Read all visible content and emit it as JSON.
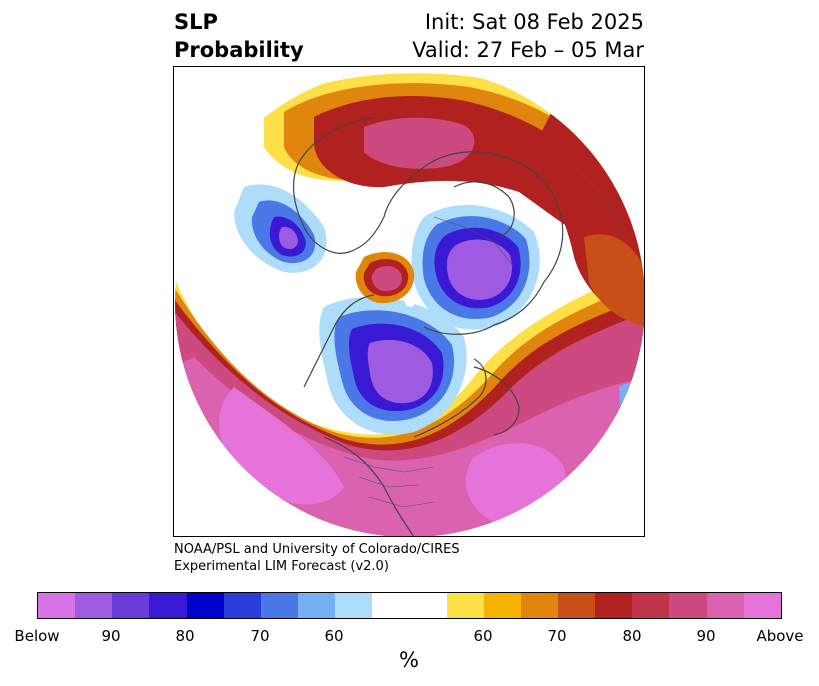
{
  "title": {
    "left_line1": "SLP",
    "left_line2": "Probability",
    "right_line1": "Init: Sat 08 Feb 2025",
    "right_line2": "Valid: 27 Feb – 05 Mar"
  },
  "credit": {
    "line1": "NOAA/PSL and University of Colorado/CIRES",
    "line2": "Experimental LIM Forecast (v2.0)"
  },
  "colorbar": {
    "unit": "%",
    "segments": [
      "#d773e6",
      "#9f5ae2",
      "#6a3bd9",
      "#3919d4",
      "#0000cc",
      "#2a3cd9",
      "#4a78e6",
      "#74b0f2",
      "#aedcfb",
      "#ffffff",
      "#ffffff",
      "#fde047",
      "#f4b400",
      "#e0860e",
      "#c85018",
      "#b0211f",
      "#c0354a",
      "#cc4a7f",
      "#db62b0",
      "#e673d9"
    ],
    "tick_labels": [
      "Below",
      "90",
      "80",
      "70",
      "60",
      "60",
      "70",
      "80",
      "90",
      "Above"
    ]
  },
  "map": {
    "projection": "north polar stereographic",
    "colors": {
      "below_strong": "#9f5ae2",
      "below_mid": "#3919d4",
      "below_light": "#74b0f2",
      "above_strong": "#e673d9",
      "above_mid": "#cc4a7f",
      "above_red": "#b0211f",
      "above_orange": "#e0860e",
      "above_yellow": "#fde047",
      "coast": "#444444"
    }
  }
}
